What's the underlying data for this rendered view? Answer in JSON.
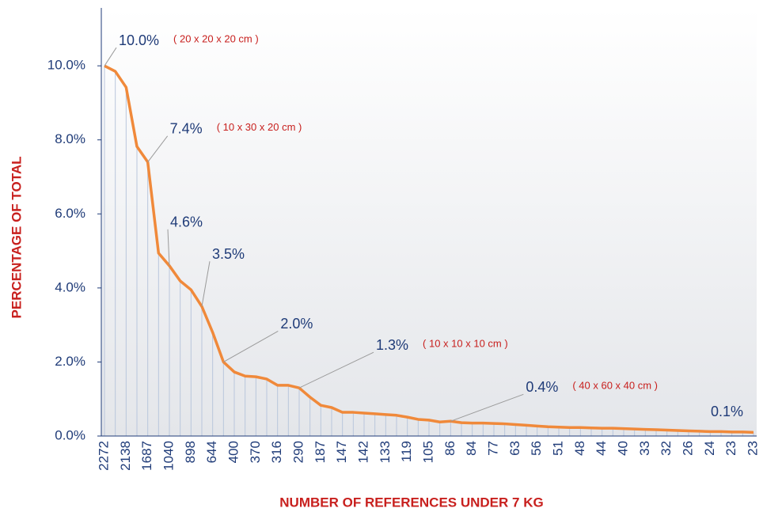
{
  "chart_data": {
    "type": "line",
    "y_label": "PERCENTAGE OF TOTAL",
    "x_label": "NUMBER OF REFERENCES UNDER 7 KG",
    "categories": [
      "2272",
      null,
      "2138",
      null,
      "1687",
      null,
      "1040",
      null,
      "898",
      null,
      "644",
      null,
      "400",
      null,
      "370",
      null,
      "316",
      null,
      "290",
      null,
      "187",
      null,
      "147",
      null,
      "142",
      null,
      "133",
      null,
      "119",
      null,
      "105",
      null,
      "86",
      null,
      "84",
      null,
      "77",
      null,
      "63",
      null,
      "56",
      null,
      "51",
      null,
      "48",
      null,
      "44",
      null,
      "40",
      null,
      "33",
      null,
      "32",
      null,
      "26",
      null,
      "24",
      null,
      "23",
      null,
      "23"
    ],
    "values": [
      10.0,
      9.85,
      9.42,
      7.82,
      7.4,
      4.94,
      4.6,
      4.19,
      3.95,
      3.5,
      2.8,
      2.0,
      1.73,
      1.62,
      1.6,
      1.54,
      1.37,
      1.37,
      1.3,
      1.05,
      0.83,
      0.77,
      0.64,
      0.64,
      0.62,
      0.6,
      0.58,
      0.56,
      0.51,
      0.45,
      0.43,
      0.38,
      0.4,
      0.36,
      0.35,
      0.35,
      0.34,
      0.33,
      0.31,
      0.29,
      0.27,
      0.25,
      0.24,
      0.23,
      0.23,
      0.22,
      0.21,
      0.21,
      0.2,
      0.19,
      0.18,
      0.17,
      0.16,
      0.15,
      0.14,
      0.13,
      0.12,
      0.12,
      0.11,
      0.11,
      0.1
    ],
    "value_labels": [
      "10.0%",
      null,
      null,
      null,
      "7.4%",
      null,
      "4.6%",
      null,
      null,
      "3.5%",
      null,
      "2.0%",
      null,
      null,
      null,
      null,
      null,
      null,
      "1.3%",
      null,
      null,
      null,
      null,
      null,
      null,
      null,
      null,
      null,
      null,
      null,
      null,
      null,
      "0.4%",
      null,
      null,
      null,
      null,
      null,
      null,
      null,
      null,
      null,
      null,
      null,
      null,
      null,
      null,
      null,
      null,
      null,
      null,
      null,
      null,
      null,
      null,
      null,
      null,
      null,
      null,
      null,
      "0.1%"
    ],
    "notes": [
      "( 20 x 20 x 20 cm )",
      null,
      null,
      null,
      "( 10 x 30 x 20 cm )",
      null,
      null,
      null,
      null,
      null,
      null,
      null,
      null,
      null,
      null,
      null,
      null,
      null,
      "( 10 x 10 x 10 cm )",
      null,
      null,
      null,
      null,
      null,
      null,
      null,
      null,
      null,
      null,
      null,
      null,
      null,
      "( 40 x 60 x 40 cm )",
      null,
      null,
      null,
      null,
      null,
      null,
      null,
      null,
      null,
      null,
      null,
      null,
      null,
      null,
      null,
      null,
      null,
      null,
      null,
      null,
      null,
      null,
      null,
      null,
      null,
      null,
      null,
      null
    ],
    "color": "#f0893a",
    "ylim": [
      0,
      11.5
    ],
    "yticks": [
      {
        "value": 0,
        "label": "0.0%"
      },
      {
        "value": 2,
        "label": "2.0%"
      },
      {
        "value": 4,
        "label": "4.0%"
      },
      {
        "value": 6,
        "label": "6.0%"
      },
      {
        "value": 8,
        "label": "8.0%"
      },
      {
        "value": 10,
        "label": "10.0%"
      }
    ]
  }
}
